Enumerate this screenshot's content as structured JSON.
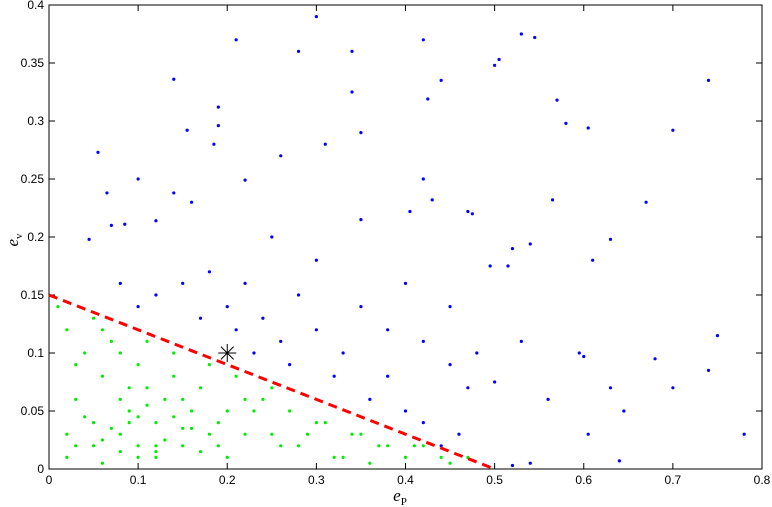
{
  "chart_data": {
    "type": "scatter",
    "x_label": {
      "text": "e",
      "sub": "P"
    },
    "y_label": {
      "text": "e",
      "sub": "v"
    },
    "xlim": [
      0,
      0.8
    ],
    "ylim": [
      0,
      0.4
    ],
    "xticks": [
      0,
      0.1,
      0.2,
      0.3,
      0.4,
      0.5,
      0.6,
      0.7,
      0.8
    ],
    "yticks": [
      0,
      0.05,
      0.1,
      0.15,
      0.2,
      0.25,
      0.3,
      0.35,
      0.4
    ],
    "grid": false,
    "series": [
      {
        "color": "#0000ff",
        "marker": "dot",
        "x": [
          0.3,
          0.21,
          0.28,
          0.34,
          0.42,
          0.53,
          0.545,
          0.505,
          0.5,
          0.14,
          0.44,
          0.74,
          0.34,
          0.19,
          0.425,
          0.57,
          0.58,
          0.605,
          0.7,
          0.155,
          0.19,
          0.35,
          0.055,
          0.185,
          0.26,
          0.31,
          0.1,
          0.065,
          0.14,
          0.22,
          0.42,
          0.43,
          0.565,
          0.67,
          0.47,
          0.475,
          0.405,
          0.35,
          0.12,
          0.07,
          0.085,
          0.16,
          0.25,
          0.045,
          0.63,
          0.54,
          0.52,
          0.61,
          0.515,
          0.495,
          0.75,
          0.74,
          0.78,
          0.595,
          0.6,
          0.68,
          0.63,
          0.7,
          0.605,
          0.645,
          0.64,
          0.52,
          0.54,
          0.56,
          0.53,
          0.5,
          0.47,
          0.45,
          0.42,
          0.38,
          0.35,
          0.33,
          0.3,
          0.28,
          0.26,
          0.24,
          0.22,
          0.2,
          0.18,
          0.15,
          0.12,
          0.1,
          0.08,
          0.36,
          0.4,
          0.42,
          0.44,
          0.46,
          0.38,
          0.32,
          0.27,
          0.3,
          0.4,
          0.45,
          0.48,
          0.23,
          0.21,
          0.17
        ],
        "values": [
          0.39,
          0.37,
          0.36,
          0.36,
          0.37,
          0.375,
          0.372,
          0.353,
          0.348,
          0.336,
          0.335,
          0.335,
          0.325,
          0.312,
          0.319,
          0.318,
          0.298,
          0.294,
          0.292,
          0.292,
          0.296,
          0.29,
          0.273,
          0.28,
          0.27,
          0.28,
          0.25,
          0.238,
          0.238,
          0.249,
          0.25,
          0.232,
          0.232,
          0.23,
          0.222,
          0.22,
          0.222,
          0.215,
          0.214,
          0.21,
          0.211,
          0.23,
          0.2,
          0.198,
          0.198,
          0.194,
          0.19,
          0.18,
          0.175,
          0.175,
          0.115,
          0.085,
          0.03,
          0.1,
          0.097,
          0.095,
          0.07,
          0.07,
          0.03,
          0.05,
          0.007,
          0.003,
          0.005,
          0.06,
          0.11,
          0.075,
          0.07,
          0.09,
          0.11,
          0.12,
          0.14,
          0.1,
          0.12,
          0.15,
          0.11,
          0.13,
          0.16,
          0.14,
          0.17,
          0.16,
          0.15,
          0.14,
          0.16,
          0.06,
          0.05,
          0.04,
          0.02,
          0.03,
          0.08,
          0.08,
          0.09,
          0.18,
          0.16,
          0.14,
          0.1,
          0.1,
          0.12,
          0.13
        ]
      },
      {
        "color": "#00ee00",
        "marker": "dot",
        "x": [
          0.02,
          0.05,
          0.08,
          0.1,
          0.12,
          0.15,
          0.18,
          0.2,
          0.03,
          0.06,
          0.09,
          0.11,
          0.13,
          0.16,
          0.19,
          0.22,
          0.25,
          0.28,
          0.3,
          0.33,
          0.35,
          0.38,
          0.4,
          0.42,
          0.45,
          0.47,
          0.04,
          0.07,
          0.1,
          0.14,
          0.17,
          0.21,
          0.24,
          0.27,
          0.31,
          0.34,
          0.37,
          0.02,
          0.05,
          0.08,
          0.11,
          0.14,
          0.18,
          0.23,
          0.29,
          0.01,
          0.03,
          0.06,
          0.09,
          0.12,
          0.15,
          0.2,
          0.26,
          0.32,
          0.36,
          0.41,
          0.44,
          0.07,
          0.1,
          0.13,
          0.16,
          0.05,
          0.08,
          0.11,
          0.02,
          0.04,
          0.06,
          0.09,
          0.12,
          0.15,
          0.19,
          0.22,
          0.08,
          0.1,
          0.12,
          0.14,
          0.06,
          0.03,
          0.17,
          0.25
        ],
        "values": [
          0.01,
          0.02,
          0.03,
          0.01,
          0.04,
          0.02,
          0.03,
          0.01,
          0.06,
          0.08,
          0.05,
          0.07,
          0.06,
          0.05,
          0.04,
          0.06,
          0.03,
          0.02,
          0.04,
          0.01,
          0.03,
          0.02,
          0.01,
          0.02,
          0.005,
          0.01,
          0.1,
          0.11,
          0.09,
          0.08,
          0.07,
          0.08,
          0.06,
          0.05,
          0.04,
          0.03,
          0.02,
          0.12,
          0.13,
          0.1,
          0.11,
          0.1,
          0.09,
          0.05,
          0.03,
          0.14,
          0.09,
          0.12,
          0.07,
          0.02,
          0.06,
          0.05,
          0.02,
          0.01,
          0.005,
          0.02,
          0.01,
          0.035,
          0.045,
          0.025,
          0.035,
          0.04,
          0.015,
          0.055,
          0.03,
          0.045,
          0.025,
          0.04,
          0.015,
          0.035,
          0.02,
          0.03,
          0.06,
          0.02,
          0.01,
          0.045,
          0.005,
          0.02,
          0.015,
          0.07
        ]
      },
      {
        "color": "#ff0000",
        "marker": "dashed-line",
        "x": [
          0,
          0.5
        ],
        "values": [
          0.15,
          0
        ]
      },
      {
        "color": "#000000",
        "marker": "star",
        "x": [
          0.2
        ],
        "values": [
          0.1
        ]
      }
    ]
  }
}
